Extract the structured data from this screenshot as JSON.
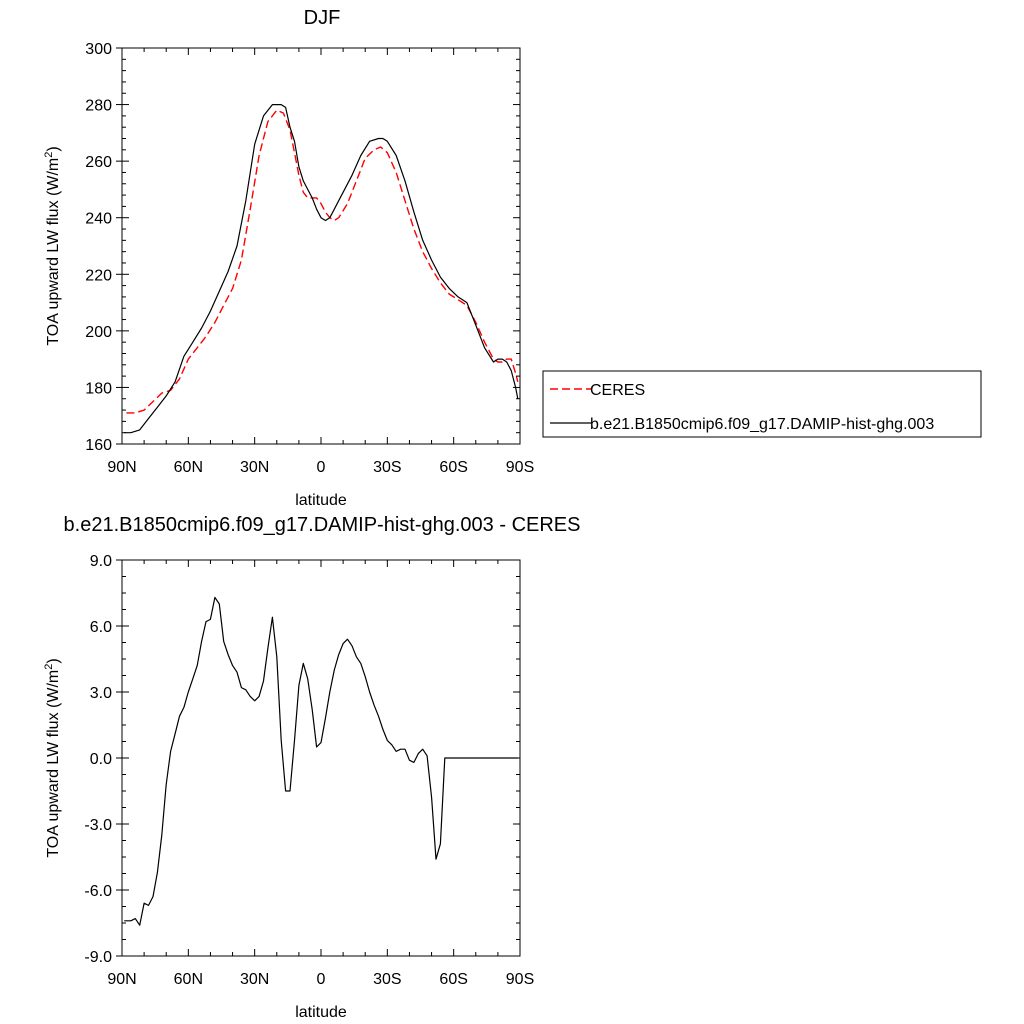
{
  "chart_data": [
    {
      "type": "line",
      "title": "DJF",
      "xlabel": "latitude",
      "ylabel_main": "TOA upward LW flux (W/m",
      "ylabel_sup": "2",
      "ylabel_tail": ")",
      "xlim": [
        90,
        -90
      ],
      "ylim": [
        160,
        300
      ],
      "x_ticks": [
        {
          "value": 90,
          "label": "90N"
        },
        {
          "value": 60,
          "label": "60N"
        },
        {
          "value": 30,
          "label": "30N"
        },
        {
          "value": 0,
          "label": "0"
        },
        {
          "value": -30,
          "label": "30S"
        },
        {
          "value": -60,
          "label": "60S"
        },
        {
          "value": -90,
          "label": "90S"
        }
      ],
      "y_ticks": [
        {
          "value": 160,
          "label": "160"
        },
        {
          "value": 180,
          "label": "180"
        },
        {
          "value": 200,
          "label": "200"
        },
        {
          "value": 220,
          "label": "220"
        },
        {
          "value": 240,
          "label": "240"
        },
        {
          "value": 260,
          "label": "260"
        },
        {
          "value": 280,
          "label": "280"
        },
        {
          "value": 300,
          "label": "300"
        }
      ],
      "legend": {
        "placement": "right"
      },
      "series": [
        {
          "name": "CERES",
          "color": "#ff0000",
          "dash": "dashed",
          "x": [
            88,
            84,
            80,
            76,
            72,
            68,
            64,
            60,
            56,
            52,
            48,
            44,
            40,
            36,
            32,
            28,
            24,
            20,
            17,
            14,
            12,
            10,
            8,
            6,
            4,
            2,
            0,
            -2,
            -4,
            -6,
            -8,
            -12,
            -16,
            -20,
            -24,
            -27,
            -30,
            -34,
            -38,
            -42,
            -46,
            -50,
            -54,
            -58,
            -62,
            -66,
            -70,
            -74,
            -78,
            -80,
            -82,
            -84,
            -86,
            -88,
            -89
          ],
          "y": [
            171,
            171,
            172,
            175,
            178,
            179,
            183,
            190,
            194,
            198,
            203,
            209,
            215,
            225,
            243,
            262,
            274,
            278,
            277,
            271,
            263,
            255,
            249,
            247,
            247,
            247,
            245,
            242,
            240,
            239,
            240,
            245,
            253,
            261,
            264,
            265,
            263,
            256,
            246,
            236,
            228,
            222,
            217,
            213,
            211,
            209,
            203,
            196,
            190,
            189,
            189,
            190,
            190,
            185,
            182
          ]
        },
        {
          "name": "b.e21.B1850cmip6.f09_g17.DAMIP-hist-ghg.003",
          "color": "#000000",
          "dash": "solid",
          "x": [
            89,
            86,
            82,
            78,
            74,
            70,
            66,
            62,
            58,
            54,
            50,
            46,
            42,
            38,
            34,
            30,
            26,
            22,
            18,
            16,
            14,
            12,
            10,
            8,
            6,
            4,
            2,
            0,
            -2,
            -4,
            -6,
            -8,
            -10,
            -14,
            -18,
            -22,
            -26,
            -28,
            -30,
            -34,
            -38,
            -42,
            -46,
            -50,
            -54,
            -58,
            -62,
            -66,
            -70,
            -74,
            -78,
            -80,
            -82,
            -84,
            -86,
            -88,
            -89
          ],
          "y": [
            164,
            164,
            165,
            169,
            173,
            177,
            182,
            191,
            196,
            201,
            207,
            214,
            221,
            230,
            246,
            266,
            276,
            280,
            280,
            279,
            272,
            267,
            258,
            253,
            250,
            247,
            243,
            240,
            239,
            240,
            243,
            246,
            249,
            255,
            262,
            267,
            268,
            268,
            267,
            262,
            253,
            242,
            232,
            225,
            219,
            215,
            212,
            210,
            202,
            194,
            189,
            190,
            190,
            189,
            186,
            180,
            176
          ]
        }
      ]
    },
    {
      "type": "line",
      "title": "b.e21.B1850cmip6.f09_g17.DAMIP-hist-ghg.003 - CERES",
      "xlabel": "latitude",
      "ylabel_main": "TOA upward LW flux (W/m",
      "ylabel_sup": "2",
      "ylabel_tail": ")",
      "xlim": [
        90,
        -90
      ],
      "ylim": [
        -9,
        9
      ],
      "x_ticks": [
        {
          "value": 90,
          "label": "90N"
        },
        {
          "value": 60,
          "label": "60N"
        },
        {
          "value": 30,
          "label": "30N"
        },
        {
          "value": 0,
          "label": "0"
        },
        {
          "value": -30,
          "label": "30S"
        },
        {
          "value": -60,
          "label": "60S"
        },
        {
          "value": -90,
          "label": "90S"
        }
      ],
      "y_ticks": [
        {
          "value": -9,
          "label": "-9.0"
        },
        {
          "value": -6,
          "label": "-6.0"
        },
        {
          "value": -3,
          "label": "-3.0"
        },
        {
          "value": 0,
          "label": "0.0"
        },
        {
          "value": 3,
          "label": "3.0"
        },
        {
          "value": 6,
          "label": "6.0"
        },
        {
          "value": 9,
          "label": "9.0"
        }
      ],
      "series": [
        {
          "color": "#000000",
          "dash": "solid",
          "x": [
            89,
            86,
            84,
            82,
            80,
            78,
            76,
            74,
            72,
            70,
            68,
            66,
            64,
            62,
            60,
            58,
            56,
            54,
            52,
            50,
            48,
            46,
            44,
            42,
            40,
            38,
            36,
            34,
            32,
            30,
            28,
            26,
            24,
            22,
            20,
            18,
            16,
            14,
            12,
            10,
            8,
            6,
            4,
            2,
            0,
            -2,
            -4,
            -6,
            -8,
            -10,
            -12,
            -14,
            -16,
            -18,
            -20,
            -22,
            -24,
            -26,
            -28,
            -30,
            -32,
            -34,
            -36,
            -38,
            -40,
            -42,
            -44,
            -46,
            -48,
            -50,
            -52,
            -54,
            -56,
            -58,
            -60,
            -62,
            -64,
            -66,
            -68,
            -70,
            -72,
            -74,
            -76,
            -78,
            -80,
            -82,
            -84,
            -86,
            -88,
            -89
          ],
          "y": [
            -7.4,
            -7.4,
            -7.3,
            -7.6,
            -6.6,
            -6.7,
            -6.3,
            -5.2,
            -3.5,
            -1.2,
            0.3,
            1.1,
            1.9,
            2.3,
            3.0,
            3.6,
            4.2,
            5.3,
            6.2,
            6.3,
            7.3,
            7.0,
            5.3,
            4.7,
            4.2,
            3.9,
            3.2,
            3.1,
            2.8,
            2.6,
            2.8,
            3.5,
            5.0,
            6.4,
            4.6,
            0.8,
            -1.5,
            -1.5,
            0.8,
            3.3,
            4.3,
            3.6,
            2.2,
            0.5,
            0.7,
            1.8,
            3.0,
            4.0,
            4.7,
            5.2,
            5.4,
            5.1,
            4.6,
            4.3,
            3.7,
            3.0,
            2.4,
            1.9,
            1.3,
            0.8,
            0.6,
            0.3,
            0.4,
            0.4,
            -0.1,
            -0.2,
            0.2,
            0.4,
            0.1,
            -1.8,
            -4.6,
            -3.9,
            0,
            0,
            0,
            0,
            0,
            0,
            0,
            0,
            0,
            0,
            0,
            0,
            0,
            0,
            0,
            0,
            0,
            0
          ]
        }
      ]
    }
  ]
}
